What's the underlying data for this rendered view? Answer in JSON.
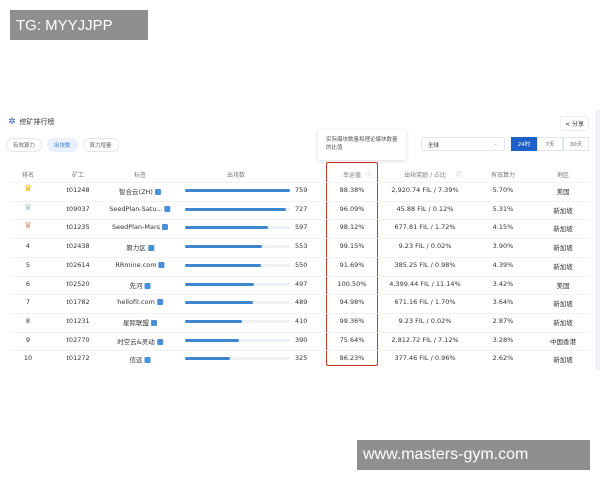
{
  "overlay": {
    "top": "TG: MYYJJPP",
    "bottom": "www.masters-gym.com"
  },
  "panel": {
    "title": "挖矿排行榜",
    "share": "分享",
    "tabs": [
      {
        "label": "有效算力",
        "active": false
      },
      {
        "label": "出块数",
        "active": true
      },
      {
        "label": "算力增量",
        "active": false
      }
    ],
    "tooltip": "实际爆块数量和理论爆块数量的比值",
    "region_select": "全球",
    "periods": [
      {
        "label": "24时",
        "active": true
      },
      {
        "label": "7天",
        "active": false
      },
      {
        "label": "30天",
        "active": false
      }
    ],
    "accent": "#1f5fc9",
    "highlight": "#c0392b"
  },
  "table": {
    "headers": [
      "排名",
      "矿工",
      "标签",
      "出块数",
      "幸运值",
      "出块奖励 / 占比",
      "有效算力",
      "地区"
    ],
    "max_blocks": 759,
    "rows": [
      {
        "rank": "1",
        "medal": "gold",
        "miner": "t01248",
        "tag": "智合云(ZH)",
        "blocks": 759,
        "luck": "88.38%",
        "reward": "2,920.74 FIL / 7.39%",
        "power": "5.70%",
        "region": "美国"
      },
      {
        "rank": "2",
        "medal": "silver",
        "miner": "t09037",
        "tag": "SeedPlan-Satu...",
        "blocks": 727,
        "luck": "96.09%",
        "reward": "45.88 FIL / 0.12%",
        "power": "5.31%",
        "region": "新加坡"
      },
      {
        "rank": "3",
        "medal": "bronze",
        "miner": "t01235",
        "tag": "SeedPlan-Mars",
        "blocks": 597,
        "luck": "98.12%",
        "reward": "677.81 FIL / 1.72%",
        "power": "4.15%",
        "region": "新加坡"
      },
      {
        "rank": "4",
        "miner": "t02438",
        "tag": "原力区",
        "blocks": 553,
        "luck": "99.15%",
        "reward": "9.23 FIL / 0.02%",
        "power": "3.90%",
        "region": "新加坡"
      },
      {
        "rank": "5",
        "miner": "t02614",
        "tag": "RRmine.com",
        "blocks": 550,
        "luck": "91.69%",
        "reward": "385.25 FIL / 0.98%",
        "power": "4.39%",
        "region": "新加坡"
      },
      {
        "rank": "6",
        "miner": "t02520",
        "tag": "先河",
        "blocks": 497,
        "luck": "100.50%",
        "reward": "4,399.44 FIL / 11.14%",
        "power": "3.42%",
        "region": "美国"
      },
      {
        "rank": "7",
        "miner": "t01782",
        "tag": "hellofil.com",
        "blocks": 489,
        "luck": "94.98%",
        "reward": "671.16 FIL / 1.70%",
        "power": "3.64%",
        "region": "新加坡"
      },
      {
        "rank": "8",
        "miner": "t01231",
        "tag": "星际联盟",
        "blocks": 410,
        "luck": "99.36%",
        "reward": "9.23 FIL / 0.02%",
        "power": "2.87%",
        "region": "新加坡"
      },
      {
        "rank": "9",
        "miner": "t02770",
        "tag": "时空云&灵动",
        "blocks": 390,
        "luck": "75.64%",
        "reward": "2,812.72 FIL / 7.12%",
        "power": "3.28%",
        "region": "中国香港"
      },
      {
        "rank": "10",
        "miner": "t01272",
        "tag": "信远",
        "blocks": 325,
        "luck": "86.23%",
        "reward": "377.46 FIL / 0.96%",
        "power": "2.62%",
        "region": "新加坡"
      }
    ]
  }
}
